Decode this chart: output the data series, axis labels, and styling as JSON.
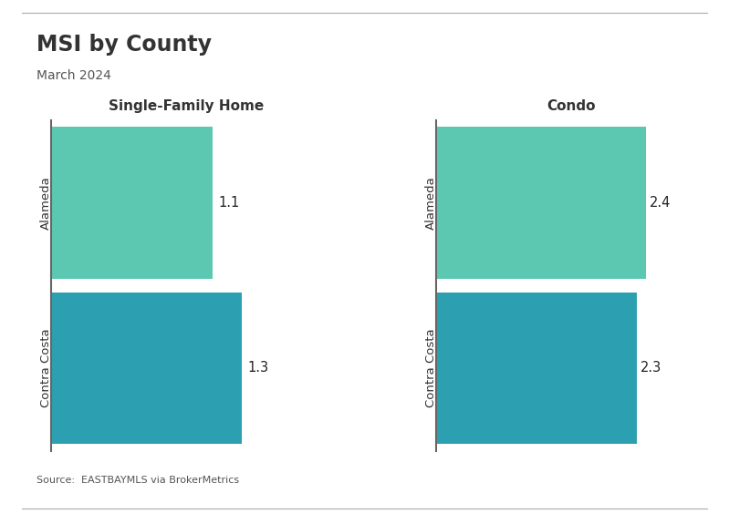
{
  "title": "MSI by County",
  "subtitle": "March 2024",
  "source": "Source:  EASTBAYMLS via BrokerMetrics",
  "panels": [
    {
      "title": "Single-Family Home",
      "categories": [
        "Contra Costa",
        "Alameda"
      ],
      "values": [
        1.3,
        1.1
      ],
      "colors": [
        "#2ca0b0",
        "#5dc8b2"
      ]
    },
    {
      "title": "Condo",
      "categories": [
        "Contra Costa",
        "Alameda"
      ],
      "values": [
        2.3,
        2.4
      ],
      "colors": [
        "#2ca0b0",
        "#5dc8b2"
      ]
    }
  ],
  "xlim_sfh": [
    0,
    1.85
  ],
  "xlim_condo": [
    0,
    3.1
  ],
  "bar_height": 0.92,
  "background_color": "#ffffff",
  "title_fontsize": 17,
  "subtitle_fontsize": 10,
  "panel_title_fontsize": 11,
  "label_fontsize": 9.5,
  "value_fontsize": 10.5,
  "source_fontsize": 8,
  "title_color": "#333333",
  "subtitle_color": "#555555",
  "source_color": "#555555",
  "value_label_color": "#222222",
  "spine_color": "#666666"
}
